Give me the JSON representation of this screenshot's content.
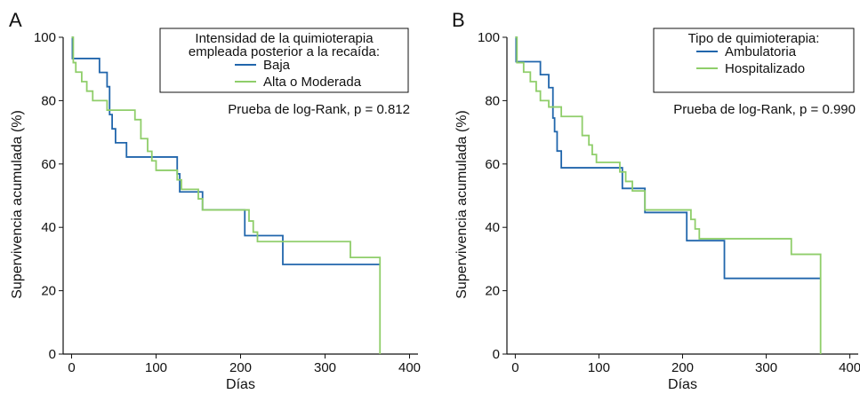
{
  "colors": {
    "blue": "#2166ac",
    "green": "#8fce6a"
  },
  "chart_data": [
    {
      "type": "line",
      "panel_label": "A",
      "xlabel": "Días",
      "ylabel": "Supervivencia acumulada (%)",
      "xlim": [
        -10,
        410
      ],
      "ylim": [
        0,
        100
      ],
      "xticks": [
        0,
        100,
        200,
        300,
        400
      ],
      "yticks": [
        0,
        20,
        40,
        60,
        80,
        100
      ],
      "legend_title": [
        "Intensidad de la quimioterapia",
        "empleada posterior a la recaída:"
      ],
      "legend_position": "top-right",
      "annotation": "Prueba de log-Rank, p = 0.812",
      "series": [
        {
          "name": "Baja",
          "color_key": "blue",
          "x": [
            0,
            1,
            33,
            42,
            45,
            48,
            52,
            65,
            125,
            128,
            145,
            155,
            205,
            250,
            365,
            365
          ],
          "y": [
            100,
            93.3,
            88.9,
            84.4,
            75.6,
            71.1,
            66.7,
            62.2,
            56.9,
            51.2,
            51.2,
            45.5,
            37.4,
            28.3,
            28.3,
            28.3
          ]
        },
        {
          "name": "Alta o Moderada",
          "color_key": "green",
          "x": [
            0,
            2,
            5,
            12,
            18,
            25,
            28,
            42,
            55,
            75,
            82,
            90,
            95,
            100,
            125,
            130,
            150,
            155,
            210,
            215,
            220,
            330,
            365,
            365
          ],
          "y": [
            100,
            92,
            89,
            86,
            83,
            80,
            80,
            77,
            77,
            74,
            68,
            64,
            61,
            58,
            55,
            52,
            49,
            45.5,
            42,
            38.5,
            35.5,
            30.5,
            30.5,
            0
          ]
        }
      ]
    },
    {
      "type": "line",
      "panel_label": "B",
      "xlabel": "Días",
      "ylabel": "Supervivencia acumulada (%)",
      "xlim": [
        -10,
        410
      ],
      "ylim": [
        0,
        100
      ],
      "xticks": [
        0,
        100,
        200,
        300,
        400
      ],
      "yticks": [
        0,
        20,
        40,
        60,
        80,
        100
      ],
      "legend_title": [
        "Tipo de quimioterapia:"
      ],
      "legend_position": "top-right",
      "annotation": "Prueba de log-Rank, p = 0.990",
      "series": [
        {
          "name": "Ambulatoria",
          "color_key": "blue",
          "x": [
            0,
            1,
            30,
            40,
            45,
            47,
            50,
            55,
            68,
            128,
            130,
            155,
            205,
            250,
            365,
            365
          ],
          "y": [
            100,
            92.3,
            88.2,
            84.1,
            74.5,
            70.2,
            64.1,
            58.8,
            58.8,
            52.3,
            52.3,
            44.7,
            35.8,
            23.9,
            23.9,
            23.9
          ]
        },
        {
          "name": "Hospitalizado",
          "color_key": "green",
          "x": [
            0,
            2,
            10,
            18,
            25,
            30,
            40,
            55,
            68,
            80,
            88,
            92,
            97,
            125,
            132,
            140,
            155,
            210,
            215,
            220,
            330,
            365,
            365
          ],
          "y": [
            100,
            92,
            89,
            86,
            83,
            80,
            78,
            75,
            75,
            69,
            66,
            63,
            60.5,
            57.5,
            54.5,
            51.5,
            45.5,
            42.5,
            39.5,
            36.4,
            31.5,
            31.5,
            0
          ]
        }
      ]
    }
  ]
}
